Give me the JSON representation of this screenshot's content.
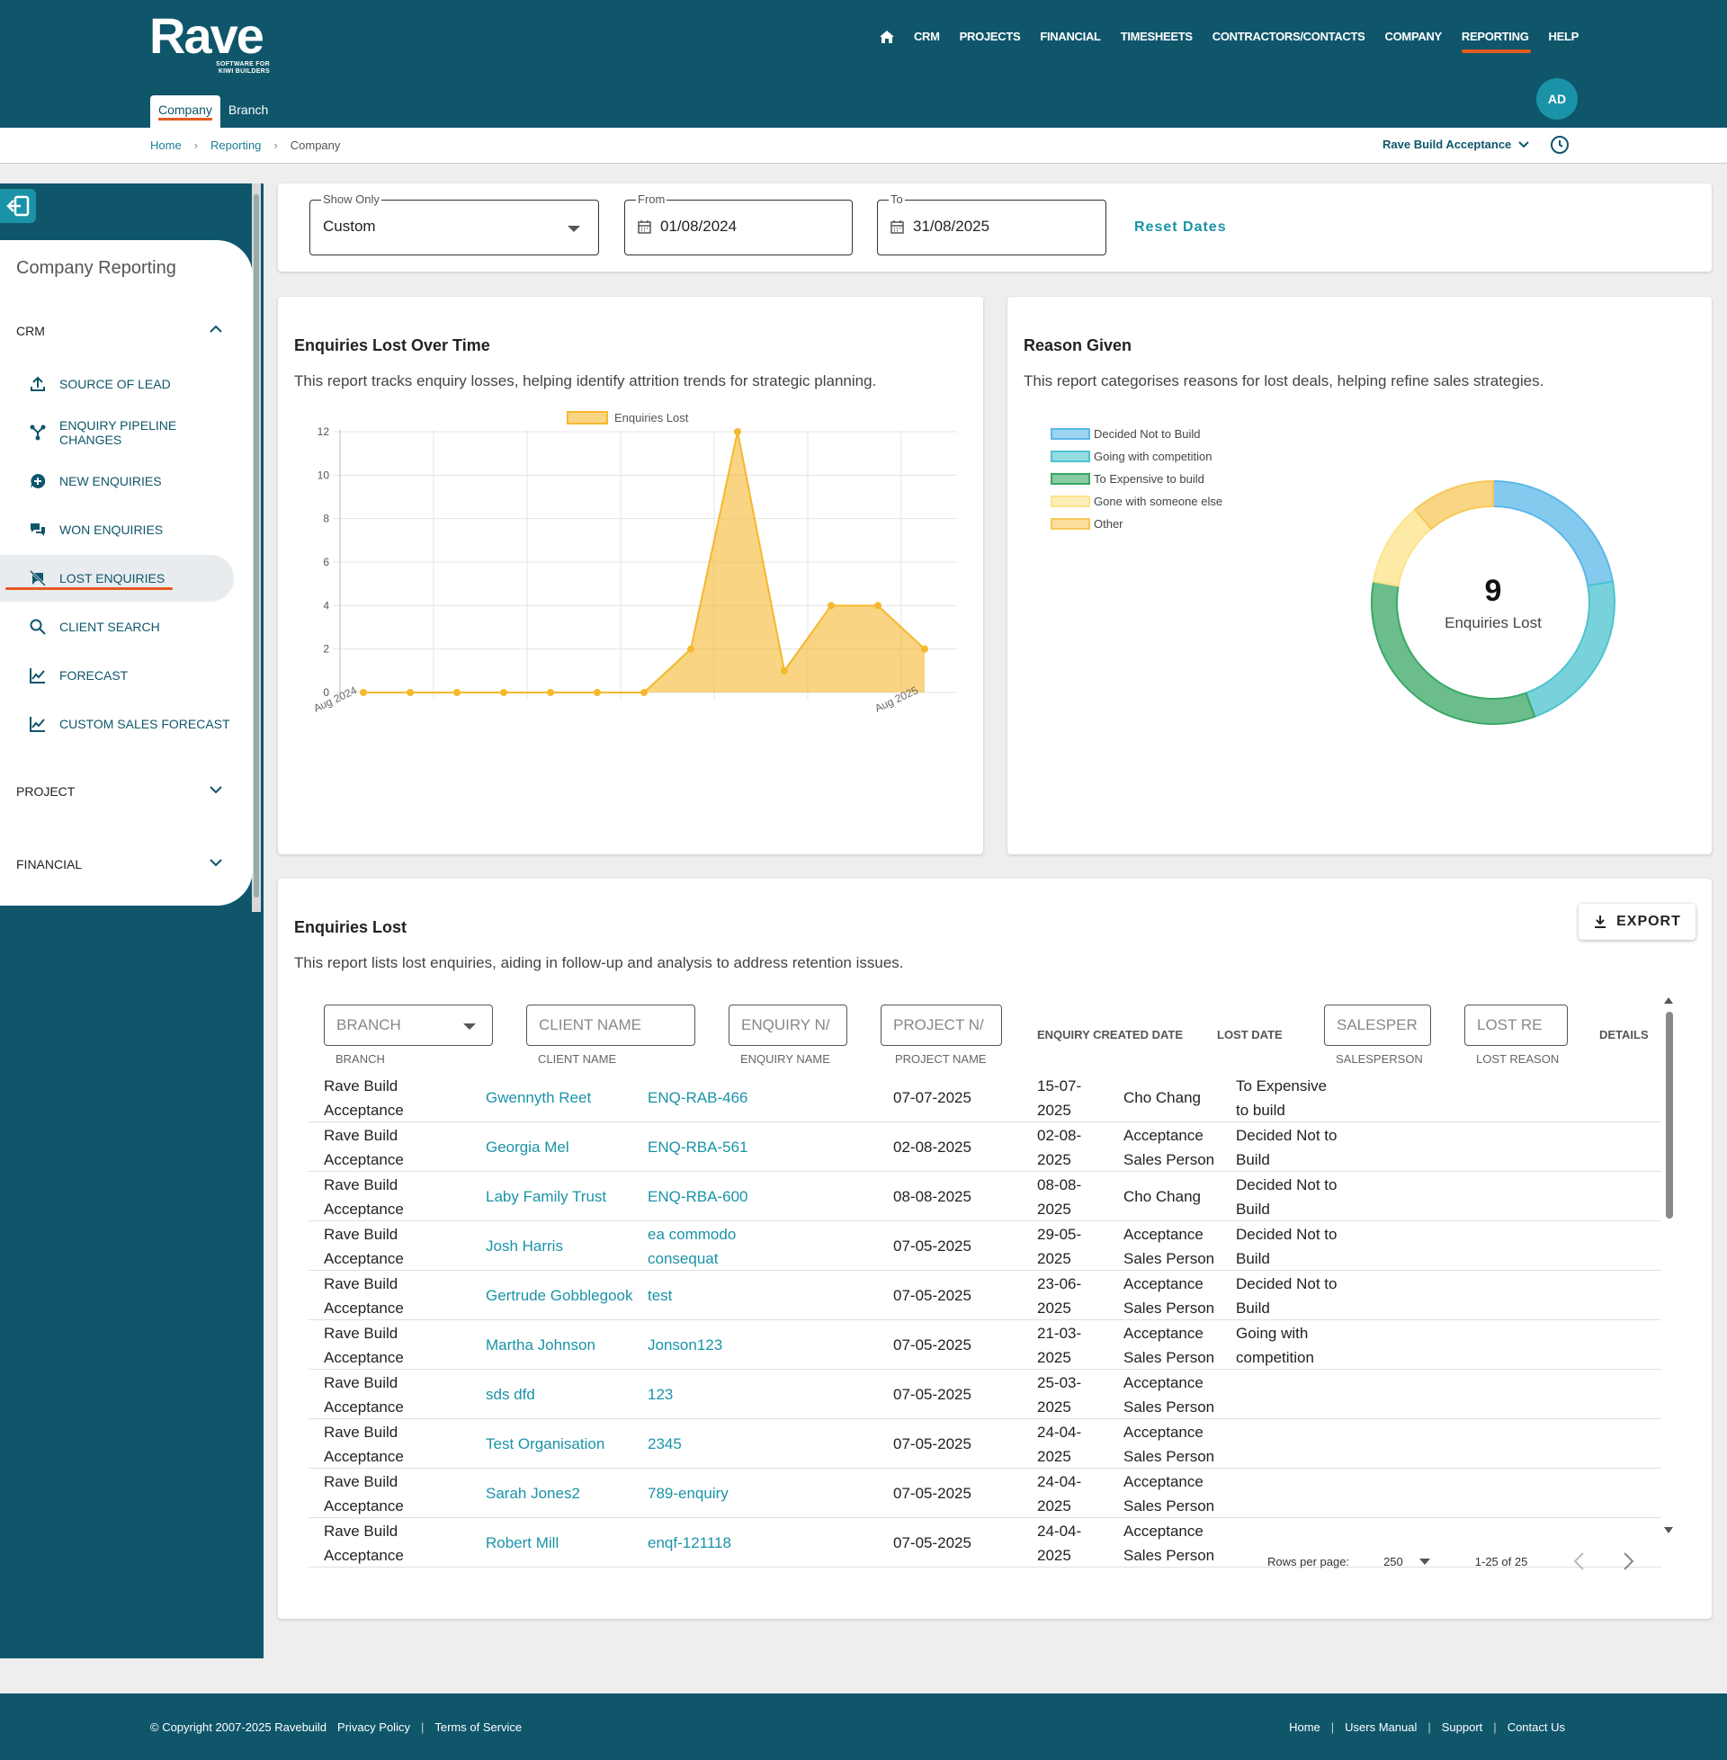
{
  "app": {
    "logo_word": "Rave",
    "logo_tag_1": "SOFTWARE FOR",
    "logo_tag_2": "KIWI BUILDERS"
  },
  "nav": {
    "items": [
      "CRM",
      "PROJECTS",
      "FINANCIAL",
      "TIMESHEETS",
      "CONTRACTORS/CONTACTS",
      "COMPANY",
      "REPORTING",
      "HELP"
    ],
    "active": "REPORTING",
    "home_icon": "home-icon"
  },
  "user": {
    "initials": "AD"
  },
  "subtabs": [
    "Company",
    "Branch"
  ],
  "breadcrumb": [
    "Home",
    "Reporting",
    "Company"
  ],
  "org_selector": "Rave Build Acceptance",
  "sidebar": {
    "title": "Company Reporting",
    "sections": {
      "crm": "CRM",
      "project": "PROJECT",
      "financial": "FINANCIAL"
    },
    "items": [
      "SOURCE OF LEAD",
      "ENQUIRY PIPELINE CHANGES",
      "NEW ENQUIRIES",
      "WON ENQUIRIES",
      "LOST ENQUIRIES",
      "CLIENT SEARCH",
      "FORECAST",
      "CUSTOM SALES FORECAST"
    ],
    "active": "LOST ENQUIRIES"
  },
  "filters": {
    "show_only_label": "Show Only",
    "show_only_value": "Custom",
    "from_label": "From",
    "from_value": "01/08/2024",
    "to_label": "To",
    "to_value": "31/08/2025",
    "reset_label": "Reset Dates"
  },
  "lost_over_time": {
    "title": "Enquiries Lost Over Time",
    "description": "This report tracks enquiry losses, helping identify attrition trends for strategic planning."
  },
  "reason_given": {
    "title": "Reason Given",
    "description": "This report categorises reasons for lost deals, helping refine sales strategies.",
    "center_value": "9",
    "center_label": "Enquiries Lost"
  },
  "chart_data": [
    {
      "type": "area",
      "series": [
        {
          "name": "Enquiries Lost",
          "values": [
            0,
            0,
            0,
            0,
            0,
            0,
            0,
            2,
            12,
            1,
            4,
            4,
            2
          ]
        }
      ],
      "x_labels": [
        "Aug 2024",
        "Aug 2025"
      ],
      "ylim": [
        0,
        12
      ],
      "yticks": [
        0,
        2,
        4,
        6,
        8,
        10,
        12
      ],
      "legend": "top",
      "grid": true,
      "color": "#f5b82e"
    },
    {
      "type": "pie",
      "variant": "donut",
      "legend": "top-left",
      "slices": [
        {
          "label": "Decided Not to Build",
          "value": 2,
          "color": "#5bb8e8"
        },
        {
          "label": "Going with competition",
          "value": 2,
          "color": "#4cc3cf"
        },
        {
          "label": "To Expensive to build",
          "value": 3,
          "color": "#3aa866"
        },
        {
          "label": "Gone with someone else",
          "value": 1,
          "color": "#fde38a"
        },
        {
          "label": "Other",
          "value": 1,
          "color": "#f7c85a"
        }
      ]
    }
  ],
  "table": {
    "title": "Enquiries Lost",
    "description": "This report lists lost enquiries, aiding in follow-up and analysis to address retention issues.",
    "export_label": "EXPORT",
    "filters": {
      "branch": "BRANCH",
      "client": "CLIENT NAME",
      "enquiry": "ENQUIRY N/",
      "project": "PROJECT N/",
      "salesperson": "SALESPER",
      "lost_reason": "LOST RE"
    },
    "columns": {
      "branch": "BRANCH",
      "client": "CLIENT NAME",
      "enquiry": "ENQUIRY NAME",
      "project": "PROJECT NAME",
      "created": "ENQUIRY CREATED DATE",
      "lost": "LOST DATE",
      "salesperson": "SALESPERSON",
      "reason": "LOST REASON",
      "details": "DETAILS"
    },
    "rows": [
      {
        "branch": "Rave Build Acceptance",
        "client": "Gwennyth Reet",
        "enquiry": "ENQ-RAB-466",
        "created": "07-07-2025",
        "lost": "15-07-2025",
        "salesperson": "Cho Chang",
        "reason": "To Expensive to build"
      },
      {
        "branch": "Rave Build Acceptance",
        "client": "Georgia Mel",
        "enquiry": "ENQ-RBA-561",
        "created": "02-08-2025",
        "lost": "02-08-2025",
        "salesperson": "Acceptance Sales Person",
        "reason": "Decided Not to Build"
      },
      {
        "branch": "Rave Build Acceptance",
        "client": "Laby Family Trust",
        "enquiry": "ENQ-RBA-600",
        "created": "08-08-2025",
        "lost": "08-08-2025",
        "salesperson": "Cho Chang",
        "reason": "Decided Not to Build"
      },
      {
        "branch": "Rave Build Acceptance",
        "client": "Josh Harris",
        "enquiry": "ea commodo consequat",
        "created": "07-05-2025",
        "lost": "29-05-2025",
        "salesperson": "Acceptance Sales Person",
        "reason": "Decided Not to Build"
      },
      {
        "branch": "Rave Build Acceptance",
        "client": "Gertrude Gobblegook",
        "enquiry": "test",
        "created": "07-05-2025",
        "lost": "23-06-2025",
        "salesperson": "Acceptance Sales Person",
        "reason": "Decided Not to Build"
      },
      {
        "branch": "Rave Build Acceptance",
        "client": "Martha Johnson",
        "enquiry": "Jonson123",
        "created": "07-05-2025",
        "lost": "21-03-2025",
        "salesperson": "Acceptance Sales Person",
        "reason": "Going with competition"
      },
      {
        "branch": "Rave Build Acceptance",
        "client": "sds dfd",
        "enquiry": "123",
        "created": "07-05-2025",
        "lost": "25-03-2025",
        "salesperson": "Acceptance Sales Person",
        "reason": ""
      },
      {
        "branch": "Rave Build Acceptance",
        "client": "Test Organisation",
        "enquiry": "2345",
        "created": "07-05-2025",
        "lost": "24-04-2025",
        "salesperson": "Acceptance Sales Person",
        "reason": ""
      },
      {
        "branch": "Rave Build Acceptance",
        "client": "Sarah Jones2",
        "enquiry": "789-enquiry",
        "created": "07-05-2025",
        "lost": "24-04-2025",
        "salesperson": "Acceptance Sales Person",
        "reason": ""
      },
      {
        "branch": "Rave Build Acceptance",
        "client": "Robert Mill",
        "enquiry": "enqf-121118",
        "created": "07-05-2025",
        "lost": "24-04-2025",
        "salesperson": "Acceptance Sales Person",
        "reason": ""
      }
    ],
    "pagination": {
      "rows_label": "Rows per page:",
      "rows_value": "250",
      "range": "1-25 of 25"
    }
  },
  "footer": {
    "copyright": "© Copyright 2007-2025 Ravebuild",
    "left_links": [
      "Privacy Policy",
      "Terms of Service"
    ],
    "right_links": [
      "Home",
      "Users Manual",
      "Support",
      "Contact Us"
    ]
  }
}
